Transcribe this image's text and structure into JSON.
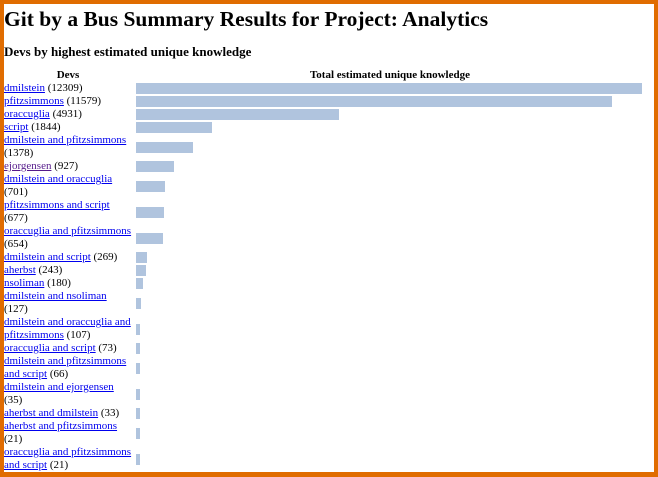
{
  "title": "Git by a Bus Summary Results for Project: Analytics",
  "subtitle": "Devs by highest estimated unique knowledge",
  "columns": {
    "devs": "Devs",
    "knowledge": "Total estimated unique knowledge"
  },
  "colors": {
    "bar": "#b0c4de",
    "border": "#e06c00",
    "link": "#0000ee",
    "visited": "#551a8b"
  },
  "max_value": 12309,
  "rows": [
    {
      "name": "dmilstein",
      "count": "(12309)",
      "value": 12309
    },
    {
      "name": "pfitzsimmons",
      "count": "(11579)",
      "value": 11579
    },
    {
      "name": "oraccuglia",
      "count": "(4931)",
      "value": 4931
    },
    {
      "name": "script",
      "count": "(1844)",
      "value": 1844
    },
    {
      "name": "dmilstein and pfitzsimmons",
      "count": "(1378)",
      "value": 1378
    },
    {
      "name": "ejorgensen",
      "count": "(927)",
      "value": 927,
      "visited": true
    },
    {
      "name": "dmilstein and oraccuglia",
      "count": "(701)",
      "value": 701
    },
    {
      "name": "pfitzsimmons and script",
      "count": "(677)",
      "value": 677
    },
    {
      "name": "oraccuglia and pfitzsimmons",
      "count": "(654)",
      "value": 654
    },
    {
      "name": "dmilstein and script",
      "count": "(269)",
      "value": 269
    },
    {
      "name": "aherbst",
      "count": "(243)",
      "value": 243
    },
    {
      "name": "nsoliman",
      "count": "(180)",
      "value": 180
    },
    {
      "name": "dmilstein and nsoliman",
      "count": "(127)",
      "value": 127
    },
    {
      "name": "dmilstein and oraccuglia and pfitzsimmons",
      "count": "(107)",
      "value": 107
    },
    {
      "name": "oraccuglia and script",
      "count": "(73)",
      "value": 73
    },
    {
      "name": "dmilstein and pfitzsimmons and script",
      "count": "(66)",
      "value": 66
    },
    {
      "name": "dmilstein and ejorgensen",
      "count": "(35)",
      "value": 35
    },
    {
      "name": "aherbst and dmilstein",
      "count": "(33)",
      "value": 33
    },
    {
      "name": "aherbst and pfitzsimmons",
      "count": "(21)",
      "value": 21
    },
    {
      "name": "oraccuglia and pfitzsimmons and script",
      "count": "(21)",
      "value": 21
    }
  ]
}
